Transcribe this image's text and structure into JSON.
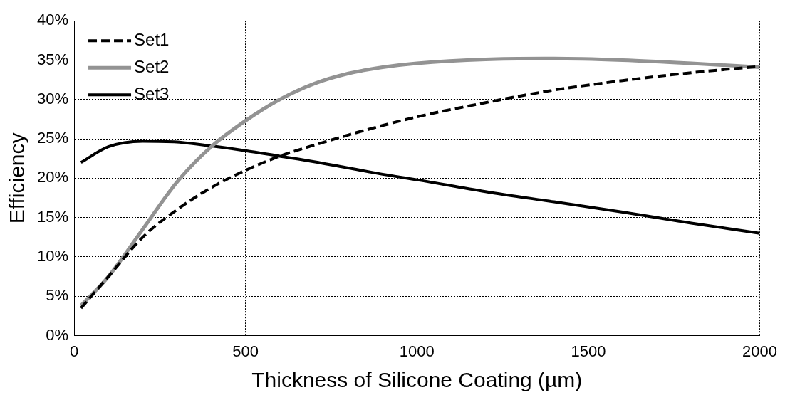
{
  "chart_data": {
    "type": "line",
    "xlabel": "Thickness of Silicone Coating (µm)",
    "ylabel": "Efficiency",
    "xlim": [
      0,
      2000
    ],
    "xticks": [
      0,
      500,
      1000,
      1500,
      2000
    ],
    "ylim": [
      0,
      40
    ],
    "yticks": [
      {
        "value": 0,
        "label": "0%"
      },
      {
        "value": 5,
        "label": "5%"
      },
      {
        "value": 10,
        "label": "10%"
      },
      {
        "value": 15,
        "label": "15%"
      },
      {
        "value": 20,
        "label": "20%"
      },
      {
        "value": 25,
        "label": "25%"
      },
      {
        "value": 30,
        "label": "30%"
      },
      {
        "value": 35,
        "label": "35%"
      },
      {
        "value": 40,
        "label": "40%"
      }
    ],
    "grid": true,
    "legend": "top left",
    "marker": "none",
    "x": [
      20,
      100,
      200,
      300,
      400,
      500,
      600,
      700,
      800,
      900,
      1000,
      1200,
      1400,
      1600,
      1800,
      2000
    ],
    "series": [
      {
        "name": "Set1",
        "color": "#000000",
        "line_style": "dashed",
        "values": [
          3.5,
          7.5,
          12.5,
          16,
          18.8,
          21,
          22.8,
          24.2,
          25.5,
          26.7,
          27.8,
          29.6,
          31.2,
          32.4,
          33.4,
          34.2
        ]
      },
      {
        "name": "Set2",
        "color": "#939393",
        "line_style": "solid",
        "values": [
          3.8,
          7.5,
          13.5,
          19.5,
          24,
          27.3,
          30,
          32,
          33.3,
          34.1,
          34.6,
          35.1,
          35.2,
          35,
          34.6,
          34.1
        ]
      },
      {
        "name": "Set3",
        "color": "#000000",
        "line_style": "solid",
        "values": [
          22,
          24,
          24.7,
          24.6,
          24.1,
          23.5,
          22.8,
          22.1,
          21.3,
          20.5,
          19.8,
          18.3,
          17,
          15.7,
          14.3,
          13
        ]
      }
    ]
  }
}
